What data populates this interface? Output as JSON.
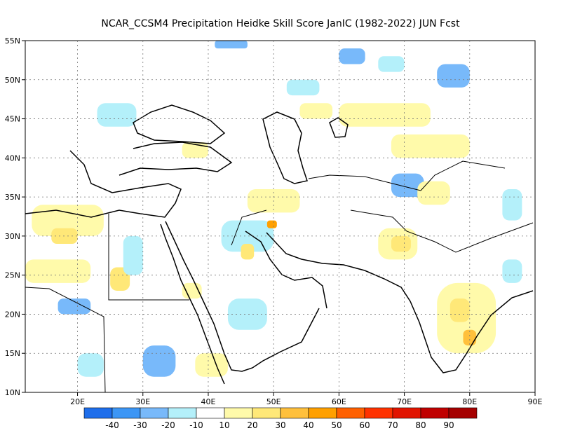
{
  "title": "NCAR_CCSM4  Precipitation Heidke Skill Score JanIC (1982-2022) JUN Fcst",
  "map": {
    "lon_range": [
      12,
      90
    ],
    "lat_range": [
      10,
      55
    ],
    "lon_ticks": [
      {
        "value": 20,
        "label": "20E"
      },
      {
        "value": 30,
        "label": "30E"
      },
      {
        "value": 40,
        "label": "40E"
      },
      {
        "value": 50,
        "label": "50E"
      },
      {
        "value": 60,
        "label": "60E"
      },
      {
        "value": 70,
        "label": "70E"
      },
      {
        "value": 80,
        "label": "80E"
      },
      {
        "value": 90,
        "label": "90E"
      }
    ],
    "lat_ticks": [
      {
        "value": 10,
        "label": "10N"
      },
      {
        "value": 15,
        "label": "15N"
      },
      {
        "value": 20,
        "label": "20N"
      },
      {
        "value": 25,
        "label": "25N"
      },
      {
        "value": 30,
        "label": "30N"
      },
      {
        "value": 35,
        "label": "35N"
      },
      {
        "value": 40,
        "label": "40N"
      },
      {
        "value": 45,
        "label": "45N"
      },
      {
        "value": 50,
        "label": "50N"
      },
      {
        "value": 55,
        "label": "55N"
      }
    ],
    "grid": "dotted"
  },
  "colorbar": {
    "colors": [
      "#1e6eeb",
      "#3c96f5",
      "#78b9fa",
      "#b4f0fa",
      "#ffffff",
      "#fffaaa",
      "#ffe878",
      "#ffc03c",
      "#ffa000",
      "#ff6000",
      "#ff3200",
      "#e11400",
      "#c00000",
      "#a50000"
    ],
    "labels": [
      "-40",
      "-30",
      "-20",
      "-10",
      "10",
      "20",
      "30",
      "40",
      "50",
      "60",
      "70",
      "80",
      "90"
    ]
  },
  "skill_regions": [
    {
      "lon": 13,
      "lat": 30,
      "w": 11,
      "h": 4,
      "level": 20
    },
    {
      "lon": 16,
      "lat": 29,
      "w": 4,
      "h": 2,
      "level": 30
    },
    {
      "lon": 12,
      "lat": 24,
      "w": 10,
      "h": 3,
      "level": 20
    },
    {
      "lon": 25,
      "lat": 23,
      "w": 3,
      "h": 3,
      "level": 30
    },
    {
      "lon": 27,
      "lat": 25,
      "w": 3,
      "h": 5,
      "level": -10
    },
    {
      "lon": 17,
      "lat": 20,
      "w": 5,
      "h": 2,
      "level": -20
    },
    {
      "lon": 30,
      "lat": 12,
      "w": 5,
      "h": 4,
      "level": -20
    },
    {
      "lon": 42,
      "lat": 28,
      "w": 8,
      "h": 4,
      "level": -10
    },
    {
      "lon": 45,
      "lat": 27,
      "w": 2,
      "h": 2,
      "level": 30
    },
    {
      "lon": 43,
      "lat": 18,
      "w": 6,
      "h": 4,
      "level": -10
    },
    {
      "lon": 46,
      "lat": 33,
      "w": 8,
      "h": 3,
      "level": 20
    },
    {
      "lon": 49,
      "lat": 31,
      "w": 1.5,
      "h": 1,
      "level": 50
    },
    {
      "lon": 75,
      "lat": 15,
      "w": 9,
      "h": 9,
      "level": 20
    },
    {
      "lon": 77,
      "lat": 19,
      "w": 3,
      "h": 3,
      "level": 30
    },
    {
      "lon": 79,
      "lat": 16,
      "w": 2,
      "h": 2,
      "level": 40
    },
    {
      "lon": 66,
      "lat": 27,
      "w": 6,
      "h": 4,
      "level": 20
    },
    {
      "lon": 68,
      "lat": 28,
      "w": 3,
      "h": 2,
      "level": 30
    },
    {
      "lon": 60,
      "lat": 44,
      "w": 14,
      "h": 3,
      "level": 20
    },
    {
      "lon": 68,
      "lat": 40,
      "w": 12,
      "h": 3,
      "level": 20
    },
    {
      "lon": 75,
      "lat": 49,
      "w": 5,
      "h": 3,
      "level": -20
    },
    {
      "lon": 66,
      "lat": 51,
      "w": 4,
      "h": 2,
      "level": -10
    },
    {
      "lon": 60,
      "lat": 52,
      "w": 4,
      "h": 2,
      "level": -20
    },
    {
      "lon": 41,
      "lat": 54,
      "w": 5,
      "h": 1,
      "level": -20
    },
    {
      "lon": 23,
      "lat": 44,
      "w": 6,
      "h": 3,
      "level": -10
    },
    {
      "lon": 36,
      "lat": 40,
      "w": 4,
      "h": 2,
      "level": 20
    },
    {
      "lon": 68,
      "lat": 35,
      "w": 5,
      "h": 3,
      "level": -20
    },
    {
      "lon": 72,
      "lat": 34,
      "w": 5,
      "h": 3,
      "level": 20
    },
    {
      "lon": 54,
      "lat": 45,
      "w": 5,
      "h": 2,
      "level": 20
    },
    {
      "lon": 36,
      "lat": 22,
      "w": 3,
      "h": 2,
      "level": 20
    },
    {
      "lon": 20,
      "lat": 12,
      "w": 4,
      "h": 3,
      "level": -10
    },
    {
      "lon": 38,
      "lat": 12,
      "w": 5,
      "h": 3,
      "level": 20
    },
    {
      "lon": 52,
      "lat": 48,
      "w": 5,
      "h": 2,
      "level": -10
    },
    {
      "lon": 85,
      "lat": 32,
      "w": 3,
      "h": 4,
      "level": -10
    },
    {
      "lon": 85,
      "lat": 24,
      "w": 3,
      "h": 3,
      "level": -10
    }
  ]
}
